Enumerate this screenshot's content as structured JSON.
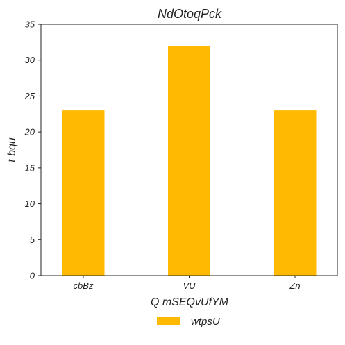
{
  "chart_data": {
    "type": "bar",
    "title": "NdOtoqPck",
    "xlabel": "Q mSEQvUfYM",
    "ylabel": "t bqu",
    "categories": [
      "cbBz",
      "VU",
      "Zn"
    ],
    "series": [
      {
        "name": "wtpsU",
        "values": [
          23,
          32,
          23
        ],
        "color": "#ffb900"
      }
    ],
    "ylim": [
      0,
      35
    ],
    "yticks": [
      0,
      5,
      10,
      15,
      20,
      25,
      30,
      35
    ],
    "grid": false,
    "legend_position": "bottom-center"
  }
}
